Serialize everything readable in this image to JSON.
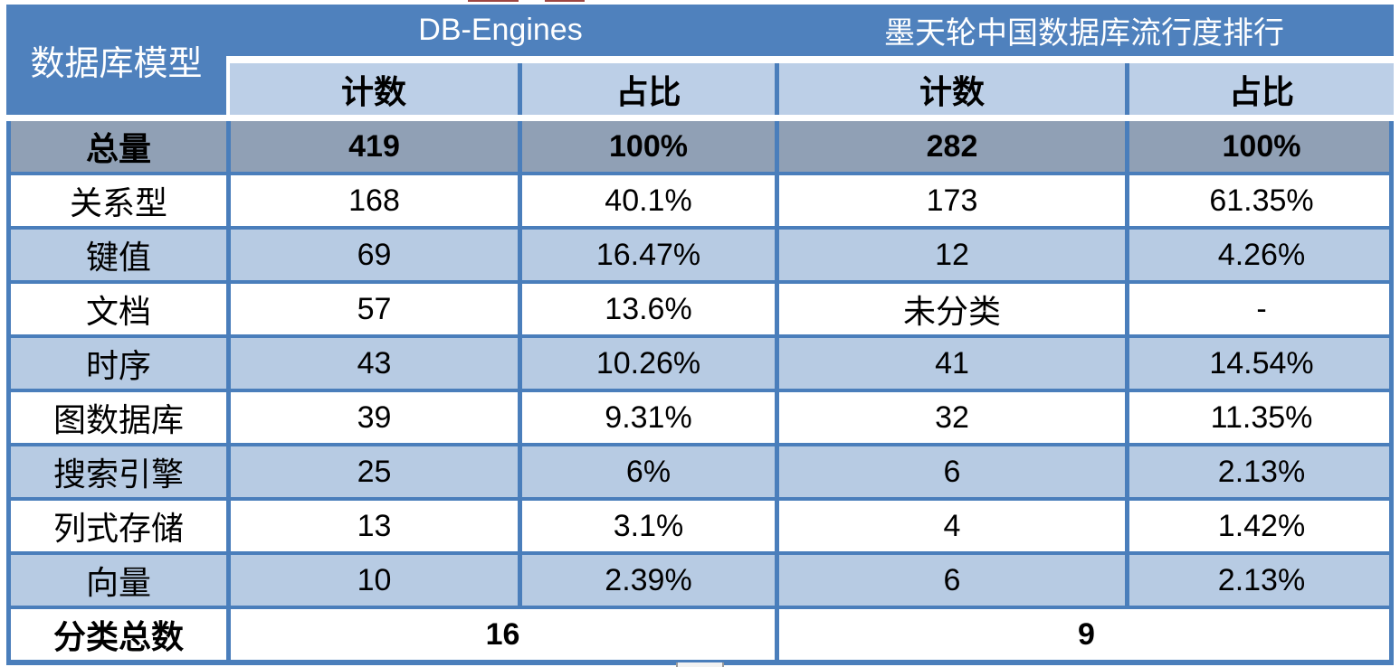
{
  "table": {
    "corner_header": "数据库模型",
    "group_headers": [
      "DB-Engines",
      "墨天轮中国数据库流行度排行"
    ],
    "sub_headers": [
      "计数",
      "占比",
      "计数",
      "占比"
    ],
    "total_row": {
      "label": "总量",
      "values": [
        "419",
        "100%",
        "282",
        "100%"
      ]
    },
    "rows": [
      {
        "label": "关系型",
        "values": [
          "168",
          "40.1%",
          "173",
          "61.35%"
        ]
      },
      {
        "label": "键值",
        "values": [
          "69",
          "16.47%",
          "12",
          "4.26%"
        ]
      },
      {
        "label": "文档",
        "values": [
          "57",
          "13.6%",
          "未分类",
          "-"
        ]
      },
      {
        "label": "时序",
        "values": [
          "43",
          "10.26%",
          "41",
          "14.54%"
        ]
      },
      {
        "label": "图数据库",
        "values": [
          "39",
          "9.31%",
          "32",
          "11.35%"
        ]
      },
      {
        "label": "搜索引擎",
        "values": [
          "25",
          "6%",
          "6",
          "2.13%"
        ]
      },
      {
        "label": "列式存储",
        "values": [
          "13",
          "3.1%",
          "4",
          "1.42%"
        ]
      },
      {
        "label": "向量",
        "values": [
          "10",
          "2.39%",
          "6",
          "2.13%"
        ]
      }
    ],
    "footer_row": {
      "label": "分类总数",
      "values": [
        "16",
        "9"
      ]
    }
  },
  "colors": {
    "header_blue": "#4F81BD",
    "subheader_blue": "#BCCFE7",
    "row_alt_blue": "#B7CBE3",
    "total_gray": "#90A0B5",
    "separator_blue": "#4A7EBB"
  },
  "chart_data": {
    "type": "table",
    "columns": [
      "数据库模型",
      "DB-Engines 计数",
      "DB-Engines 占比",
      "墨天轮中国数据库流行度排行 计数",
      "墨天轮中国数据库流行度排行 占比"
    ],
    "rows": [
      [
        "总量",
        419,
        "100%",
        282,
        "100%"
      ],
      [
        "关系型",
        168,
        "40.1%",
        173,
        "61.35%"
      ],
      [
        "键值",
        69,
        "16.47%",
        12,
        "4.26%"
      ],
      [
        "文档",
        57,
        "13.6%",
        "未分类",
        "-"
      ],
      [
        "时序",
        43,
        "10.26%",
        41,
        "14.54%"
      ],
      [
        "图数据库",
        39,
        "9.31%",
        32,
        "11.35%"
      ],
      [
        "搜索引擎",
        25,
        "6%",
        6,
        "2.13%"
      ],
      [
        "列式存储",
        13,
        "3.1%",
        4,
        "1.42%"
      ],
      [
        "向量",
        10,
        "2.39%",
        6,
        "2.13%"
      ],
      [
        "分类总数",
        16,
        "",
        9,
        ""
      ]
    ]
  }
}
